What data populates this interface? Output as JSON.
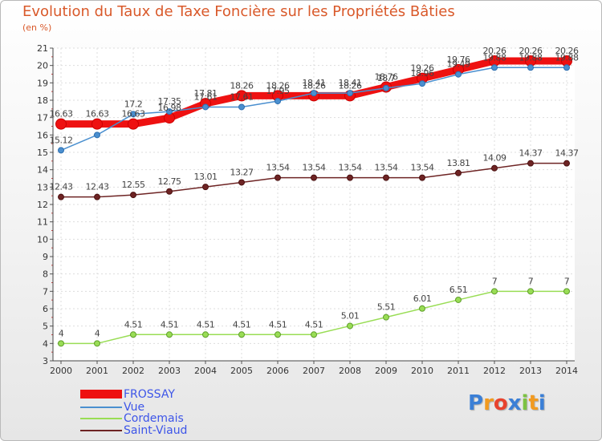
{
  "chart_data": {
    "type": "line",
    "title": "Evolution du Taux de Taxe Foncière sur les Propriétés Bâties",
    "ylabel": "(en %)",
    "xlabel": "",
    "ylim": [
      3,
      21
    ],
    "yticks": [
      3,
      4,
      5,
      6,
      7,
      8,
      9,
      10,
      11,
      12,
      13,
      14,
      15,
      16,
      17,
      18,
      19,
      20,
      21
    ],
    "categories": [
      "2000",
      "2001",
      "2002",
      "2003",
      "2004",
      "2005",
      "2006",
      "2007",
      "2008",
      "2009",
      "2010",
      "2011",
      "2012",
      "2013",
      "2014"
    ],
    "series": [
      {
        "name": "FROSSAY",
        "color": "#ee1111",
        "values": [
          16.63,
          16.63,
          16.63,
          16.98,
          17.81,
          18.26,
          18.26,
          18.26,
          18.26,
          18.76,
          19.26,
          19.76,
          20.26,
          20.26,
          20.26
        ],
        "labels": [
          "16.63",
          "16.63",
          "16.63",
          "16.98",
          "17.81",
          "18.26",
          "18.26",
          "18.26",
          "18.26",
          "18.76",
          "19.26",
          "19.76",
          "20.26",
          "20.26",
          "20.26"
        ]
      },
      {
        "name": "Vue",
        "color": "#4a8fcf",
        "values": [
          15.12,
          16.0,
          17.2,
          17.35,
          17.61,
          17.61,
          17.95,
          18.41,
          18.41,
          18.7,
          18.96,
          19.49,
          19.88,
          19.88,
          19.88
        ],
        "labels": [
          "15.12",
          "",
          "17.2",
          "17.35",
          "17.61",
          "17.61",
          "17.95",
          "18.41",
          "18.41",
          "18.7",
          "18.96",
          "19.49",
          "19.88",
          "19.88",
          "19.88"
        ]
      },
      {
        "name": "Cordemais",
        "color": "#99dd55",
        "values": [
          4,
          4,
          4.51,
          4.51,
          4.51,
          4.51,
          4.51,
          4.51,
          5.01,
          5.51,
          6.01,
          6.51,
          7,
          7,
          7
        ],
        "labels": [
          "4",
          "4",
          "4.51",
          "4.51",
          "4.51",
          "4.51",
          "4.51",
          "4.51",
          "5.01",
          "5.51",
          "6.01",
          "6.51",
          "7",
          "7",
          "7"
        ]
      },
      {
        "name": "Saint-Viaud",
        "color": "#6e2424",
        "values": [
          12.43,
          12.43,
          12.55,
          12.75,
          13.01,
          13.27,
          13.54,
          13.54,
          13.54,
          13.54,
          13.54,
          13.81,
          14.09,
          14.37,
          14.37
        ],
        "labels": [
          "12.43",
          "12.43",
          "12.55",
          "12.75",
          "13.01",
          "13.27",
          "13.54",
          "13.54",
          "13.54",
          "13.54",
          "13.54",
          "13.81",
          "14.09",
          "14.37",
          "14.37"
        ]
      }
    ]
  },
  "legend": {
    "items": [
      {
        "label": "FROSSAY"
      },
      {
        "label": "Vue"
      },
      {
        "label": "Cordemais"
      },
      {
        "label": "Saint-Viaud"
      }
    ]
  },
  "brand": {
    "letters": [
      "P",
      "r",
      "o",
      "x",
      "i",
      "t",
      "i"
    ],
    "colors": [
      "#3b7fd6",
      "#f29a1f",
      "#e8432e",
      "#3b7fd6",
      "#7cc242",
      "#f29a1f",
      "#3b7fd6"
    ]
  }
}
